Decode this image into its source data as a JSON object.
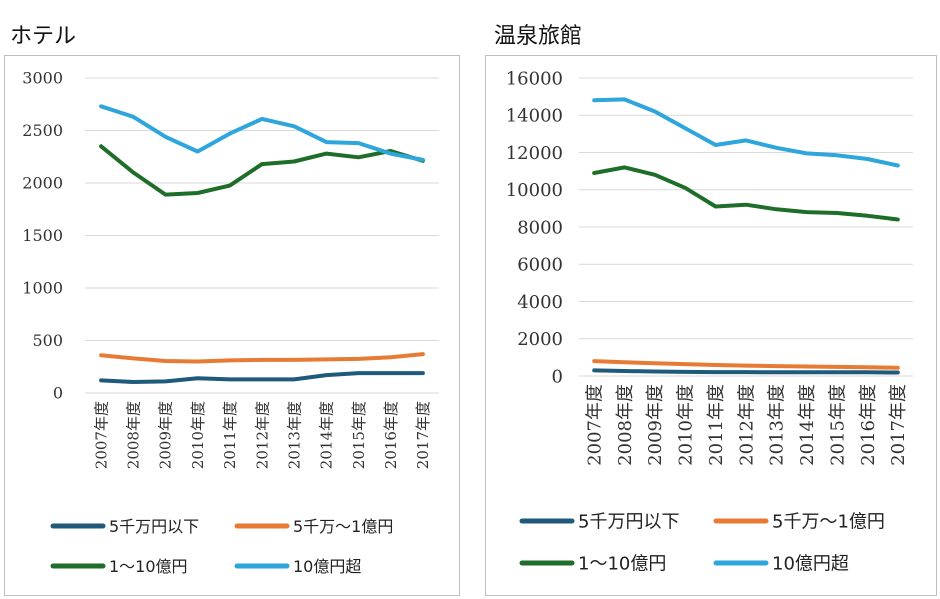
{
  "chart_data": [
    {
      "type": "line",
      "title": "ホテル",
      "categories": [
        "2007年度",
        "2008年度",
        "2009年度",
        "2010年度",
        "2011年度",
        "2012年度",
        "2013年度",
        "2014年度",
        "2015年度",
        "2016年度",
        "2017年度"
      ],
      "ylim": [
        0,
        3000
      ],
      "yticks": [
        0,
        500,
        1000,
        1500,
        2000,
        2500,
        3000
      ],
      "grid": true,
      "legend_position": "bottom",
      "series": [
        {
          "name": "5千万円以下",
          "color": "#1f5a7a",
          "values": [
            120,
            105,
            110,
            140,
            130,
            130,
            130,
            170,
            190,
            190,
            190
          ]
        },
        {
          "name": "5千万～1億円",
          "color": "#e87b34",
          "values": [
            360,
            330,
            305,
            300,
            310,
            315,
            315,
            320,
            325,
            340,
            370
          ]
        },
        {
          "name": "1～10億円",
          "color": "#1e6e2a",
          "values": [
            2350,
            2100,
            1890,
            1905,
            1975,
            2180,
            2205,
            2280,
            2245,
            2305,
            2210
          ]
        },
        {
          "name": "10億円超",
          "color": "#2ea6dc",
          "values": [
            2730,
            2630,
            2440,
            2300,
            2470,
            2610,
            2540,
            2390,
            2380,
            2280,
            2220
          ]
        }
      ]
    },
    {
      "type": "line",
      "title": "温泉旅館",
      "categories": [
        "2007年度",
        "2008年度",
        "2009年度",
        "2010年度",
        "2011年度",
        "2012年度",
        "2013年度",
        "2014年度",
        "2015年度",
        "2016年度",
        "2017年度"
      ],
      "ylim": [
        0,
        16000
      ],
      "yticks": [
        0,
        2000,
        4000,
        6000,
        8000,
        10000,
        12000,
        14000,
        16000
      ],
      "grid": true,
      "legend_position": "bottom",
      "series": [
        {
          "name": "5千万円以下",
          "color": "#1f5a7a",
          "values": [
            300,
            270,
            240,
            220,
            210,
            210,
            200,
            200,
            200,
            200,
            190
          ]
        },
        {
          "name": "5千万～1億円",
          "color": "#e87b34",
          "values": [
            800,
            740,
            680,
            640,
            590,
            560,
            530,
            510,
            490,
            470,
            440
          ]
        },
        {
          "name": "1～10億円",
          "color": "#1e6e2a",
          "values": [
            10900,
            11200,
            10800,
            10100,
            9100,
            9200,
            8950,
            8800,
            8750,
            8600,
            8400
          ]
        },
        {
          "name": "10億円超",
          "color": "#2ea6dc",
          "values": [
            14800,
            14850,
            14200,
            13300,
            12400,
            12650,
            12250,
            11950,
            11850,
            11650,
            11300
          ]
        }
      ]
    }
  ]
}
